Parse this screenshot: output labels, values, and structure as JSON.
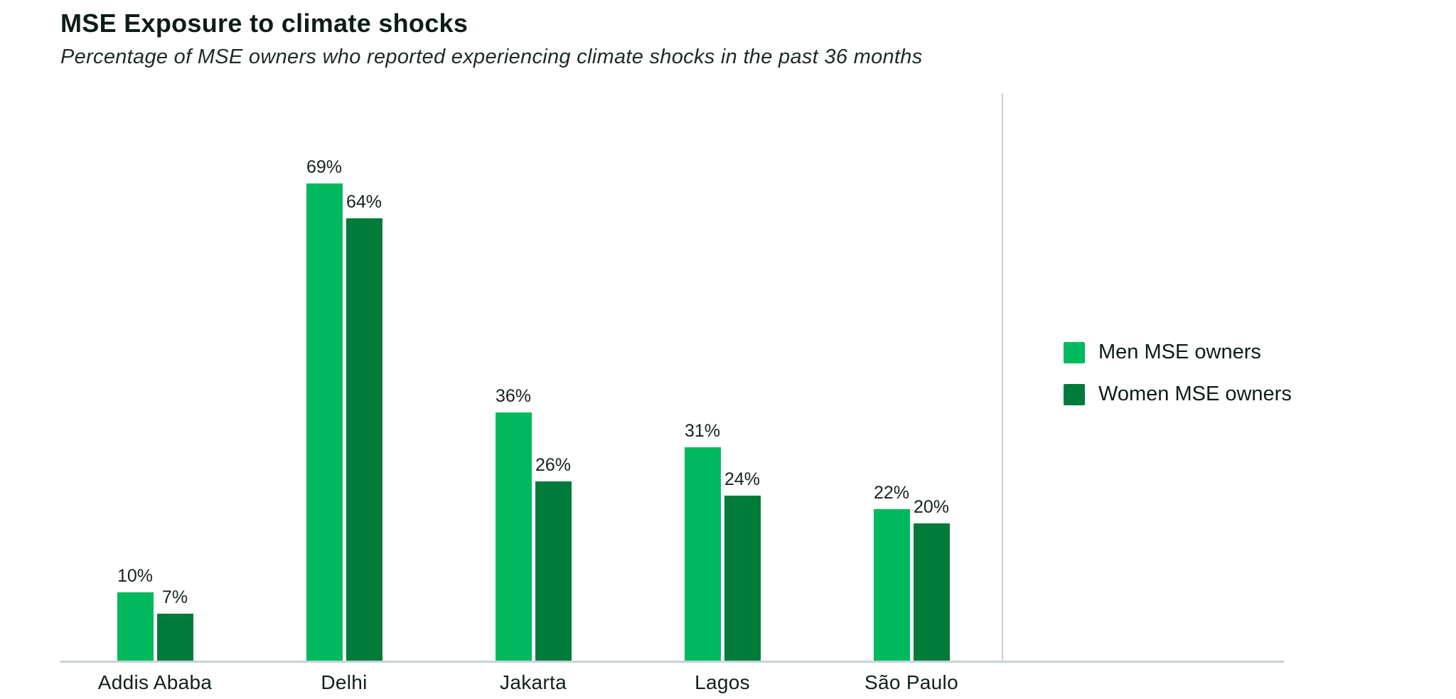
{
  "header": {
    "title": "MSE Exposure to climate shocks",
    "subtitle": "Percentage of MSE owners who reported experiencing climate shocks in the past 36 months"
  },
  "legend": {
    "items": [
      {
        "label": "Men MSE owners",
        "color": "#00b95f"
      },
      {
        "label": "Women MSE owners",
        "color": "#007b3a"
      }
    ]
  },
  "chart_data": {
    "type": "bar",
    "title": "MSE Exposure to climate shocks",
    "subtitle": "Percentage of MSE owners who reported experiencing climate shocks in the past 36 months",
    "categories": [
      "Addis Ababa",
      "Delhi",
      "Jakarta",
      "Lagos",
      "São Paulo"
    ],
    "series": [
      {
        "name": "Men MSE owners",
        "color": "#00b95f",
        "values": [
          10,
          69,
          36,
          31,
          22
        ],
        "labels": [
          "10%",
          "69%",
          "36%",
          "31%",
          "22%"
        ]
      },
      {
        "name": "Women MSE owners",
        "color": "#007b3a",
        "values": [
          7,
          64,
          26,
          24,
          20
        ],
        "labels": [
          "7%",
          "64%",
          "26%",
          "24%",
          "20%"
        ]
      }
    ],
    "xlabel": "",
    "ylabel": "",
    "ylim": [
      0,
      82
    ],
    "grid": false,
    "value_labels_shown": true,
    "legend_position": "right",
    "axis_color": "#c6d4d8"
  }
}
